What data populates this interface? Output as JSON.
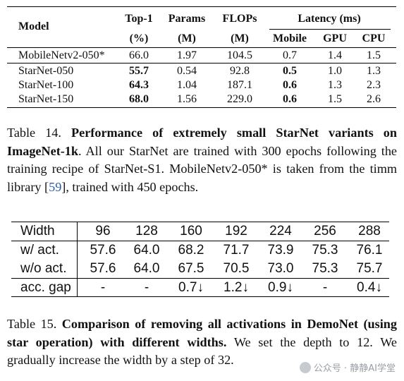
{
  "table14": {
    "headers": {
      "model": "Model",
      "top1": "Top-1",
      "top1_unit": "(%)",
      "params": "Params",
      "params_unit": "(M)",
      "flops": "FLOPs",
      "flops_unit": "(M)",
      "latency": "Latency (ms)",
      "mobile": "Mobile",
      "gpu": "GPU",
      "cpu": "CPU"
    },
    "rows": [
      {
        "model": "MobileNetv2-050*",
        "top1": "66.0",
        "params": "1.97",
        "flops": "104.5",
        "mobile": "0.7",
        "gpu": "1.4",
        "cpu": "1.5"
      },
      {
        "model": "StarNet-050",
        "top1": "55.7",
        "params": "0.54",
        "flops": "92.8",
        "mobile": "0.5",
        "gpu": "1.0",
        "cpu": "1.3"
      },
      {
        "model": "StarNet-100",
        "top1": "64.3",
        "params": "1.04",
        "flops": "187.1",
        "mobile": "0.6",
        "gpu": "1.3",
        "cpu": "2.3"
      },
      {
        "model": "StarNet-150",
        "top1": "68.0",
        "params": "1.56",
        "flops": "229.0",
        "mobile": "0.6",
        "gpu": "1.5",
        "cpu": "2.6"
      }
    ]
  },
  "caption14": {
    "label": "Table 14.",
    "bold": "Performance of extremely small StarNet variants on ImageNet-1k",
    "text1": ". All our StarNet are trained with 300 epochs following the training recipe of StarNet-S1. MobileNetv2-050* is taken from the timm library [",
    "cite": "59",
    "text2": "], trained with 450 epochs."
  },
  "table15": {
    "header": [
      "Width",
      "96",
      "128",
      "160",
      "192",
      "224",
      "256",
      "288"
    ],
    "rows": [
      [
        "w/ act.",
        "57.6",
        "64.0",
        "68.2",
        "71.7",
        "73.9",
        "75.3",
        "76.1"
      ],
      [
        "w/o act.",
        "57.6",
        "64.0",
        "67.5",
        "70.5",
        "73.0",
        "75.3",
        "75.7"
      ],
      [
        "acc. gap",
        "-",
        "-",
        "0.7↓",
        "1.2↓",
        "0.9↓",
        "-",
        "0.4↓"
      ]
    ]
  },
  "caption15": {
    "label": "Table 15.",
    "bold": "Comparison of removing all activations in DemoNet (using star operation) with different widths.",
    "text": " We set the depth to 12. We gradually increase the width by a step of 32."
  },
  "watermark": "公众号 · 静静AI学堂"
}
